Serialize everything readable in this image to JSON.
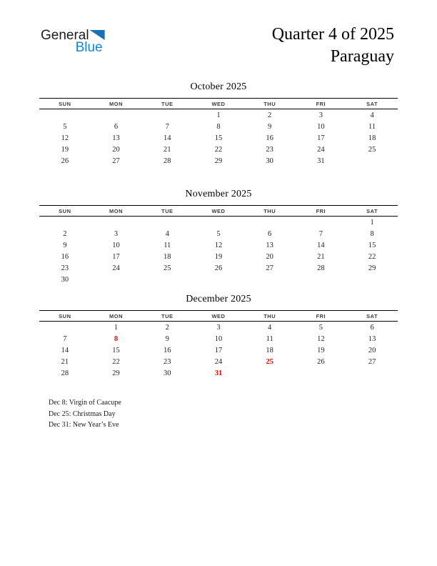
{
  "page": {
    "logo": {
      "line1": "General",
      "line2": "Blue"
    },
    "title": {
      "line1": "Quarter 4 of 2025",
      "line2": "Paraguay"
    }
  },
  "colors": {
    "logo_blue": "#1388cf",
    "logo_triangle_blue": "#1b6fb5",
    "holiday_red": "#fe0000",
    "text": "#212121"
  },
  "weekday_headers": [
    "SUN",
    "MON",
    "TUE",
    "WED",
    "THU",
    "FRI",
    "SAT"
  ],
  "months": [
    {
      "name": "October 2025",
      "weeks": [
        [
          "",
          "",
          "",
          "1",
          "2",
          "3",
          "4"
        ],
        [
          "5",
          "6",
          "7",
          "8",
          "9",
          "10",
          "11"
        ],
        [
          "12",
          "13",
          "14",
          "15",
          "16",
          "17",
          "18"
        ],
        [
          "19",
          "20",
          "21",
          "22",
          "23",
          "24",
          "25"
        ],
        [
          "26",
          "27",
          "28",
          "29",
          "30",
          "31",
          ""
        ]
      ],
      "red_days": []
    },
    {
      "name": "November 2025",
      "weeks": [
        [
          "",
          "",
          "",
          "",
          "",
          "",
          "1"
        ],
        [
          "2",
          "3",
          "4",
          "5",
          "6",
          "7",
          "8"
        ],
        [
          "9",
          "10",
          "11",
          "12",
          "13",
          "14",
          "15"
        ],
        [
          "16",
          "17",
          "18",
          "19",
          "20",
          "21",
          "22"
        ],
        [
          "23",
          "24",
          "25",
          "26",
          "27",
          "28",
          "29"
        ],
        [
          "30",
          "",
          "",
          "",
          "",
          "",
          ""
        ]
      ],
      "red_days": []
    },
    {
      "name": "December 2025",
      "weeks": [
        [
          "",
          "1",
          "2",
          "3",
          "4",
          "5",
          "6"
        ],
        [
          "7",
          "8",
          "9",
          "10",
          "11",
          "12",
          "13"
        ],
        [
          "14",
          "15",
          "16",
          "17",
          "18",
          "19",
          "20"
        ],
        [
          "21",
          "22",
          "23",
          "24",
          "25",
          "26",
          "27"
        ],
        [
          "28",
          "29",
          "30",
          "31",
          "",
          "",
          ""
        ]
      ],
      "red_days": [
        "8",
        "25",
        "31"
      ]
    }
  ],
  "holiday_notes": [
    "Dec 8: Virgin of Caacupe",
    "Dec 25: Christmas Day",
    "Dec 31: New Year’s Eve"
  ]
}
